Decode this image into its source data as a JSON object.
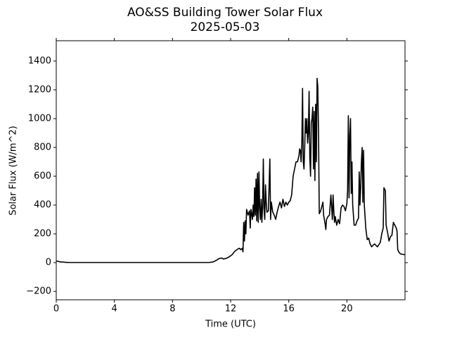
{
  "chart_data": {
    "type": "line",
    "title": "AO&SS Building Tower Solar Flux",
    "subtitle": "2025-05-03",
    "x_label": "Time (UTC)",
    "y_label": "Solar Flux (W/m^2)",
    "color": "#000000",
    "xlim": [
      0,
      24
    ],
    "xticks": [
      0,
      4,
      8,
      12,
      16,
      20
    ],
    "ylim": [
      -258,
      1541
    ],
    "yticks": [
      {
        "value": -200,
        "label": "−200"
      },
      0,
      200,
      400,
      600,
      800,
      1000,
      1200,
      1400
    ],
    "x": [
      0,
      0.3,
      0.7,
      1,
      10.5,
      10.8,
      11,
      11.2,
      11.4,
      11.5,
      11.7,
      11.9,
      12.1,
      12.3,
      12.5,
      12.6,
      12.7,
      12.8,
      12.85,
      12.9,
      12.95,
      13,
      13.05,
      13.1,
      13.2,
      13.3,
      13.35,
      13.4,
      13.5,
      13.55,
      13.6,
      13.65,
      13.7,
      13.75,
      13.8,
      13.85,
      13.9,
      13.95,
      14,
      14.05,
      14.1,
      14.15,
      14.2,
      14.25,
      14.3,
      14.35,
      14.4,
      14.45,
      14.5,
      14.6,
      14.7,
      14.75,
      14.8,
      14.9,
      15,
      15.1,
      15.2,
      15.3,
      15.4,
      15.5,
      15.6,
      15.7,
      15.8,
      15.9,
      16,
      16.1,
      16.2,
      16.3,
      16.4,
      16.5,
      16.6,
      16.7,
      16.75,
      16.8,
      16.85,
      16.9,
      16.95,
      17,
      17.05,
      17.1,
      17.15,
      17.2,
      17.25,
      17.3,
      17.35,
      17.4,
      17.45,
      17.5,
      17.55,
      17.6,
      17.65,
      17.7,
      17.75,
      17.8,
      17.85,
      17.9,
      17.95,
      18,
      18.05,
      18.1,
      18.2,
      18.3,
      18.35,
      18.4,
      18.5,
      18.55,
      18.6,
      18.7,
      18.8,
      18.9,
      19,
      19.05,
      19.1,
      19.15,
      19.2,
      19.25,
      19.3,
      19.4,
      19.5,
      19.6,
      19.7,
      19.8,
      19.9,
      20,
      20.05,
      20.1,
      20.15,
      20.2,
      20.25,
      20.3,
      20.35,
      20.4,
      20.5,
      20.6,
      20.7,
      20.8,
      20.85,
      20.9,
      20.95,
      21,
      21.05,
      21.1,
      21.15,
      21.2,
      21.3,
      21.4,
      21.5,
      21.6,
      21.7,
      21.8,
      21.9,
      22,
      22.1,
      22.3,
      22.4,
      22.5,
      22.55,
      22.65,
      22.7,
      22.8,
      22.9,
      23,
      23.1,
      23.2,
      23.3,
      23.4,
      23.45,
      23.5,
      23.6,
      23.7,
      24
    ],
    "values": [
      12,
      5,
      2,
      1,
      1,
      5,
      15,
      28,
      32,
      25,
      30,
      40,
      55,
      80,
      95,
      100,
      90,
      100,
      75,
      280,
      150,
      290,
      200,
      370,
      330,
      360,
      240,
      370,
      300,
      400,
      320,
      520,
      330,
      580,
      290,
      620,
      280,
      630,
      380,
      300,
      440,
      280,
      390,
      720,
      370,
      300,
      540,
      420,
      350,
      360,
      720,
      300,
      420,
      350,
      330,
      300,
      350,
      390,
      420,
      380,
      440,
      390,
      420,
      400,
      420,
      430,
      470,
      600,
      650,
      700,
      700,
      740,
      790,
      780,
      700,
      820,
      1210,
      700,
      650,
      810,
      1000,
      900,
      1000,
      830,
      900,
      1190,
      730,
      600,
      970,
      1000,
      1080,
      650,
      1050,
      570,
      1100,
      700,
      1280,
      1220,
      900,
      340,
      360,
      400,
      420,
      330,
      270,
      230,
      300,
      320,
      330,
      470,
      300,
      470,
      360,
      280,
      320,
      290,
      260,
      300,
      270,
      380,
      400,
      390,
      360,
      410,
      500,
      1020,
      450,
      880,
      1000,
      480,
      700,
      400,
      260,
      260,
      290,
      310,
      630,
      400,
      520,
      700,
      800,
      420,
      780,
      400,
      240,
      160,
      170,
      130,
      110,
      120,
      130,
      120,
      110,
      140,
      200,
      240,
      520,
      500,
      260,
      210,
      150,
      180,
      190,
      280,
      260,
      240,
      220,
      90,
      70,
      60,
      55
    ]
  }
}
